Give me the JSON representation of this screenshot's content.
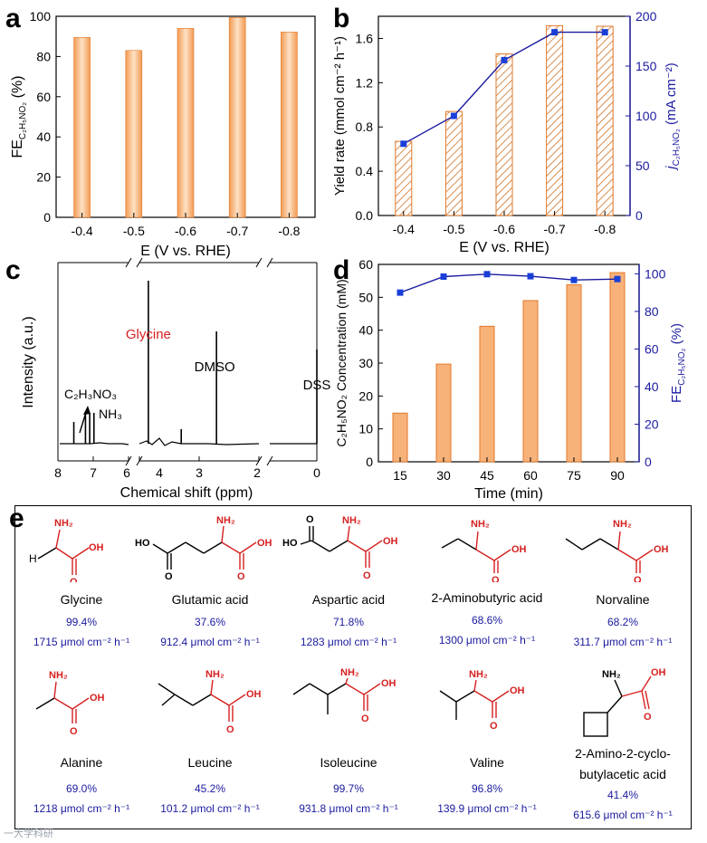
{
  "panels": {
    "a": "a",
    "b": "b",
    "c": "c",
    "d": "d",
    "e": "e"
  },
  "colors": {
    "bar_fill": "#f7b27a",
    "bar_edge": "#e0782a",
    "hatch": "#d07020",
    "blue": "#1a1aa0",
    "marker": "#1a3fd8",
    "red_text": "#d62020"
  },
  "chart_data": [
    {
      "id": "a",
      "type": "bar",
      "categories": [
        "-0.4",
        "-0.5",
        "-0.6",
        "-0.7",
        "-0.8"
      ],
      "values": [
        89.5,
        83.0,
        94.0,
        99.4,
        92.2
      ],
      "xlabel": "E (V vs. RHE)",
      "ylabel_pre": "FE",
      "ylabel_sub": "C₂H₅NO₂",
      "ylabel_post": "(%)",
      "ylim": [
        0,
        100
      ],
      "yticks": [
        "0",
        "20",
        "40",
        "60",
        "80",
        "100"
      ]
    },
    {
      "id": "b",
      "type": "bar+line",
      "categories": [
        "-0.4",
        "-0.5",
        "-0.6",
        "-0.7",
        "-0.8"
      ],
      "bars": {
        "name": "Yield rate",
        "values": [
          0.67,
          0.94,
          1.46,
          1.715,
          1.71
        ]
      },
      "line": {
        "name": "j C2H5NO2",
        "values": [
          72,
          100,
          156,
          184,
          184
        ]
      },
      "xlabel": "E (V vs. RHE)",
      "ylabel_left": "Yield rate (mmol cm⁻² h⁻¹)",
      "ylabel_right_pre": "j",
      "ylabel_right_sub": "C₂H₅NO₂",
      "ylabel_right_post": "(mA cm⁻²)",
      "ylim_left": [
        0,
        1.8
      ],
      "ylim_right": [
        0,
        200
      ],
      "yticks_left": [
        "0.0",
        "0.4",
        "0.8",
        "1.2",
        "1.6"
      ],
      "yticks_right": [
        "0",
        "50",
        "100",
        "150",
        "200"
      ]
    },
    {
      "id": "c",
      "type": "spectrum",
      "xlabel": "Chemical shift (ppm)",
      "ylabel": "Intensity (a.u.)",
      "xticks": [
        "8",
        "7",
        "6",
        "4",
        "3",
        "2",
        "0"
      ],
      "peaks": [
        {
          "ppm": 7.55,
          "height": 0.12
        },
        {
          "ppm": 7.22,
          "height": 0.17
        },
        {
          "ppm": 7.1,
          "height": 0.17
        },
        {
          "ppm": 6.98,
          "height": 0.17
        },
        {
          "ppm": 3.85,
          "height": 0.9
        },
        {
          "ppm": 3.3,
          "height": 0.08
        },
        {
          "ppm": 2.71,
          "height": 0.62
        },
        {
          "ppm": 0.0,
          "height": 0.52
        }
      ],
      "labels": {
        "glycine": "Glycine",
        "dmso": "DMSO",
        "dss": "DSS",
        "glyoxylic_pre": "C₂H₃NO₃",
        "nh3": "NH₃"
      }
    },
    {
      "id": "d",
      "type": "bar+line",
      "categories": [
        "15",
        "30",
        "45",
        "60",
        "75",
        "90"
      ],
      "bars": {
        "name": "C2H5NO2 Concentration",
        "values": [
          14.8,
          29.7,
          41.2,
          49.0,
          53.8,
          57.5
        ]
      },
      "line": {
        "name": "FE C2H5NO2",
        "values": [
          90,
          98.5,
          99.8,
          98.7,
          96.7,
          97.2
        ]
      },
      "xlabel": "Time (min)",
      "ylabel_left_pre": "C₂H₅NO₂",
      "ylabel_left_post": "Concentration (mM)",
      "ylabel_right_pre": "FE",
      "ylabel_right_sub": "C₂H₅NO₂",
      "ylabel_right_post": "(%)",
      "ylim_left": [
        0,
        60
      ],
      "ylim_right": [
        0,
        105
      ],
      "yticks_left": [
        "0",
        "10",
        "20",
        "30",
        "40",
        "50",
        "60"
      ],
      "yticks_right": [
        "0",
        "20",
        "40",
        "60",
        "80",
        "100"
      ]
    }
  ],
  "products": [
    {
      "name": "Glycine",
      "fe": "99.4%",
      "rate": "1715 μmol cm⁻² h⁻¹"
    },
    {
      "name": "Glutamic acid",
      "fe": "37.6%",
      "rate": "912.4 μmol cm⁻² h⁻¹"
    },
    {
      "name": "Aspartic acid",
      "fe": "71.8%",
      "rate": "1283 μmol cm⁻² h⁻¹"
    },
    {
      "name": "2-Aminobutyric acid",
      "fe": "68.6%",
      "rate": "1300 μmol cm⁻² h⁻¹"
    },
    {
      "name": "Norvaline",
      "fe": "68.2%",
      "rate": "311.7 μmol cm⁻² h⁻¹"
    },
    {
      "name": "Alanine",
      "fe": "69.0%",
      "rate": "1218 μmol cm⁻² h⁻¹"
    },
    {
      "name": "Leucine",
      "fe": "45.2%",
      "rate": "101.2 μmol cm⁻² h⁻¹"
    },
    {
      "name": "Isoleucine",
      "fe": "99.7%",
      "rate": "931.8 μmol cm⁻² h⁻¹"
    },
    {
      "name": "Valine",
      "fe": "96.8%",
      "rate": "139.9 μmol cm⁻² h⁻¹"
    },
    {
      "name": "2-Amino-2-cyclo-",
      "name2": "butylacetic acid",
      "fe": "41.4%",
      "rate": "615.6 μmol cm⁻² h⁻¹"
    }
  ],
  "structure_labels": {
    "nh2": "NH₂",
    "oh": "OH",
    "o": "O",
    "h": "H",
    "ho": "HO"
  },
  "watermark": "一大学科研"
}
